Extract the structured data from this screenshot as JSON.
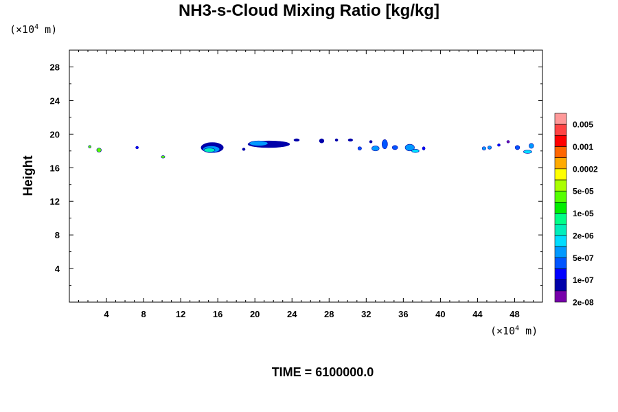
{
  "chart_data": {
    "type": "contour",
    "title": "NH3-s-Cloud Mixing Ratio [kg/kg]",
    "ylabel": "Height",
    "x_unit": {
      "prefix": "(×10",
      "exp": "4",
      "suffix": " m)"
    },
    "y_unit": {
      "prefix": "(×10",
      "exp": "4",
      "suffix": " m)"
    },
    "xlim": [
      0,
      51
    ],
    "ylim": [
      0,
      30
    ],
    "x_ticks": [
      4,
      8,
      12,
      16,
      20,
      24,
      28,
      32,
      36,
      40,
      44,
      48
    ],
    "y_ticks": [
      4,
      8,
      12,
      16,
      20,
      24,
      28
    ],
    "footer": "TIME = 6100000.0",
    "colorbar": {
      "labels": [
        "0.005",
        "0.001",
        "0.0002",
        "5e-05",
        "1e-05",
        "2e-06",
        "5e-07",
        "1e-07",
        "2e-08"
      ],
      "colors": [
        "#ff9999",
        "#ff4444",
        "#ff0000",
        "#ff6600",
        "#ffaa00",
        "#ffff00",
        "#aaff00",
        "#55ff00",
        "#00ee00",
        "#00ff88",
        "#00eebb",
        "#00ddff",
        "#0099ff",
        "#0055ff",
        "#0000ff",
        "#0000aa",
        "#7700aa"
      ]
    },
    "cloud_patches": [
      {
        "x": 2.2,
        "y": 18.5,
        "w": 0.3,
        "h": 0.3,
        "level": 7
      },
      {
        "x": 3.2,
        "y": 18.1,
        "w": 0.5,
        "h": 0.5,
        "level": 7
      },
      {
        "x": 7.3,
        "y": 18.4,
        "w": 0.3,
        "h": 0.3,
        "level": 14
      },
      {
        "x": 10.1,
        "y": 17.3,
        "w": 0.4,
        "h": 0.3,
        "level": 7
      },
      {
        "x": 15.4,
        "y": 18.4,
        "w": 2.4,
        "h": 1.2,
        "level": 15
      },
      {
        "x": 15.3,
        "y": 18.2,
        "w": 1.8,
        "h": 0.8,
        "level": 12
      },
      {
        "x": 15.1,
        "y": 18.1,
        "w": 1.2,
        "h": 0.5,
        "level": 10
      },
      {
        "x": 21.5,
        "y": 18.8,
        "w": 4.5,
        "h": 0.8,
        "level": 15
      },
      {
        "x": 20.4,
        "y": 18.9,
        "w": 2.0,
        "h": 0.6,
        "level": 12
      },
      {
        "x": 24.5,
        "y": 19.3,
        "w": 0.6,
        "h": 0.3,
        "level": 15
      },
      {
        "x": 18.8,
        "y": 18.2,
        "w": 0.3,
        "h": 0.3,
        "level": 15
      },
      {
        "x": 27.2,
        "y": 19.2,
        "w": 0.5,
        "h": 0.5,
        "level": 15
      },
      {
        "x": 28.8,
        "y": 19.3,
        "w": 0.3,
        "h": 0.3,
        "level": 15
      },
      {
        "x": 30.3,
        "y": 19.3,
        "w": 0.5,
        "h": 0.3,
        "level": 15
      },
      {
        "x": 31.3,
        "y": 18.3,
        "w": 0.4,
        "h": 0.4,
        "level": 13
      },
      {
        "x": 33.0,
        "y": 18.3,
        "w": 0.8,
        "h": 0.6,
        "level": 12
      },
      {
        "x": 34.0,
        "y": 18.8,
        "w": 0.6,
        "h": 1.1,
        "level": 13
      },
      {
        "x": 32.5,
        "y": 19.1,
        "w": 0.3,
        "h": 0.3,
        "level": 15
      },
      {
        "x": 35.1,
        "y": 18.4,
        "w": 0.6,
        "h": 0.5,
        "level": 13
      },
      {
        "x": 36.7,
        "y": 18.4,
        "w": 1.0,
        "h": 0.8,
        "level": 12
      },
      {
        "x": 37.3,
        "y": 18.0,
        "w": 0.8,
        "h": 0.4,
        "level": 11
      },
      {
        "x": 38.2,
        "y": 18.3,
        "w": 0.3,
        "h": 0.4,
        "level": 14
      },
      {
        "x": 44.7,
        "y": 18.3,
        "w": 0.4,
        "h": 0.4,
        "level": 12
      },
      {
        "x": 45.3,
        "y": 18.4,
        "w": 0.4,
        "h": 0.4,
        "level": 12
      },
      {
        "x": 46.3,
        "y": 18.7,
        "w": 0.3,
        "h": 0.3,
        "level": 14
      },
      {
        "x": 47.3,
        "y": 19.1,
        "w": 0.3,
        "h": 0.3,
        "level": 16
      },
      {
        "x": 48.3,
        "y": 18.4,
        "w": 0.5,
        "h": 0.5,
        "level": 13
      },
      {
        "x": 49.4,
        "y": 17.9,
        "w": 0.9,
        "h": 0.4,
        "level": 11
      },
      {
        "x": 49.8,
        "y": 18.6,
        "w": 0.5,
        "h": 0.6,
        "level": 12
      }
    ]
  }
}
